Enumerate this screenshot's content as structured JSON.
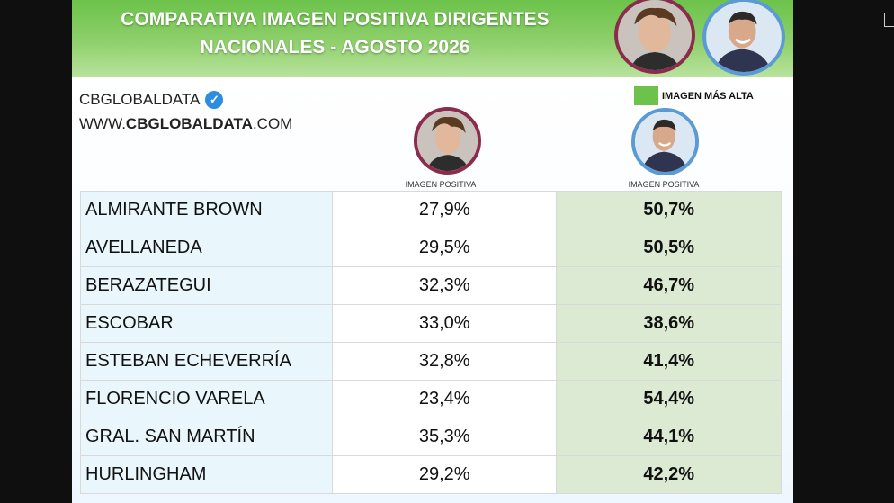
{
  "banner": {
    "title_line1": "COMPARATIVA IMAGEN POSITIVA DIRIGENTES",
    "title_line2": "NACIONALES - AGOSTO  2026"
  },
  "brand": {
    "name": "CBGLOBALDATA",
    "site_prefix": "WWW.",
    "site_bold": "CBGLOBALDATA",
    "site_suffix": ".COM"
  },
  "legend": {
    "label": "IMAGEN MÁS ALTA",
    "color": "#6cc24a"
  },
  "columns": [
    {
      "caption": "IMAGEN POSITIVA",
      "ring_color": "#8b2c4c"
    },
    {
      "caption": "IMAGEN POSITIVA",
      "ring_color": "#5b9bd5"
    }
  ],
  "rows": [
    {
      "municipio": "ALMIRANTE BROWN",
      "col1": "27,9%",
      "col2": "50,7%"
    },
    {
      "municipio": "AVELLANEDA",
      "col1": "29,5%",
      "col2": "50,5%"
    },
    {
      "municipio": "BERAZATEGUI",
      "col1": "32,3%",
      "col2": "46,7%"
    },
    {
      "municipio": "ESCOBAR",
      "col1": "33,0%",
      "col2": "38,6%"
    },
    {
      "municipio": "ESTEBAN ECHEVERRÍA",
      "col1": "32,8%",
      "col2": "41,4%"
    },
    {
      "municipio": "FLORENCIO VARELA",
      "col1": "23,4%",
      "col2": "54,4%"
    },
    {
      "municipio": "GRAL. SAN MARTÍN",
      "col1": "35,3%",
      "col2": "44,1%"
    },
    {
      "municipio": "HURLINGHAM",
      "col1": "29,2%",
      "col2": "42,2%"
    }
  ],
  "colors": {
    "highlight_cell": "#dcead3",
    "name_cell": "#e9f6fb",
    "verified": "#2a8de0"
  }
}
